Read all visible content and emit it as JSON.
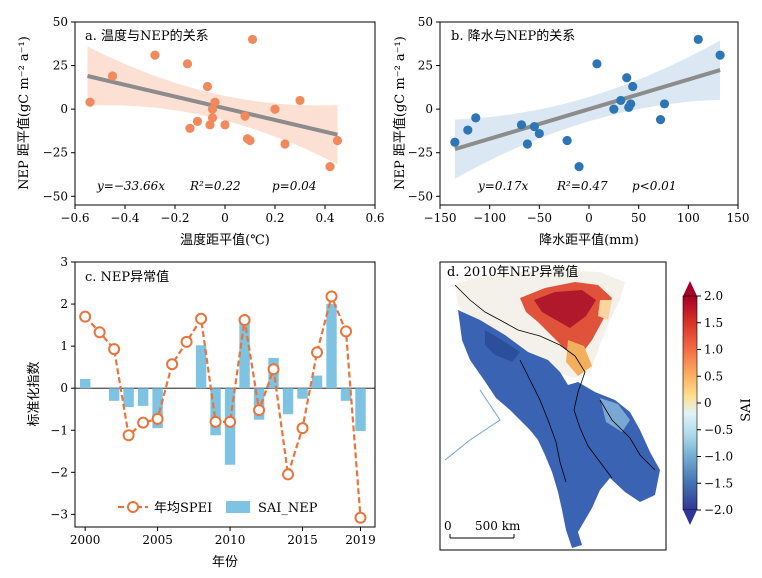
{
  "chart_data": [
    {
      "id": "a",
      "type": "scatter",
      "title": "a. 温度与NEP的关系",
      "xlabel": "温度距平值(℃)",
      "ylabel": "NEP 距平值(gC m⁻² a⁻¹)",
      "xlim": [
        -0.6,
        0.6
      ],
      "ylim": [
        -55,
        50
      ],
      "xticks": [
        -0.6,
        -0.4,
        -0.2,
        0,
        0.2,
        0.4,
        0.6
      ],
      "yticks": [
        -50,
        -25,
        0,
        25,
        50
      ],
      "xtick_labels": [
        "−0.6",
        "−0.4",
        "−0.2",
        "0",
        "0.2",
        "0.4",
        "0.6"
      ],
      "ytick_labels": [
        "−50",
        "−25",
        "0",
        "25",
        "50"
      ],
      "point_color": "#f08a5d",
      "band_color": "#fcd5c6",
      "fit": {
        "slope": -33.66,
        "intercept": 0.5,
        "x_range": [
          -0.55,
          0.45
        ]
      },
      "stats": {
        "eq": "y=−33.66x",
        "r2": "R²=0.22",
        "p": "p=0.04"
      },
      "x": [
        -0.54,
        -0.45,
        -0.28,
        -0.15,
        -0.14,
        -0.11,
        -0.07,
        -0.06,
        -0.05,
        -0.05,
        -0.04,
        0.0,
        0.08,
        0.09,
        0.1,
        0.11,
        0.2,
        0.24,
        0.3,
        0.42,
        0.45
      ],
      "y": [
        4,
        19,
        31,
        26,
        -11,
        -7,
        13,
        -9,
        -5,
        0,
        4,
        -9,
        -4,
        -17,
        -18,
        40,
        0,
        -20,
        5,
        -33,
        -18
      ]
    },
    {
      "id": "b",
      "type": "scatter",
      "title": "b. 降水与NEP的关系",
      "xlabel": "降水距平值(mm)",
      "ylabel": "NEP 距平值(gC m⁻² a⁻¹)",
      "xlim": [
        -150,
        150
      ],
      "ylim": [
        -55,
        50
      ],
      "xticks": [
        -150,
        -100,
        -50,
        0,
        50,
        100,
        150
      ],
      "yticks": [
        -50,
        -25,
        0,
        25,
        50
      ],
      "xtick_labels": [
        "−150",
        "−100",
        "−50",
        "0",
        "50",
        "100",
        "150"
      ],
      "ytick_labels": [
        "−50",
        "−25",
        "0",
        "25",
        "50"
      ],
      "point_color": "#2e75b6",
      "band_color": "#cfe0f0",
      "fit": {
        "slope": 0.17,
        "intercept": 0,
        "x_range": [
          -135,
          132
        ]
      },
      "stats": {
        "eq": "y=0.17x",
        "r2": "R²=0.47",
        "p": "p<0.01"
      },
      "x": [
        -135,
        -122,
        -114,
        -68,
        -62,
        -55,
        -50,
        -22,
        -10,
        8,
        25,
        32,
        38,
        40,
        42,
        44,
        72,
        76,
        110,
        132
      ],
      "y": [
        -19,
        -12,
        -5,
        -9,
        -20,
        -10,
        -14,
        -18,
        -33,
        26,
        0,
        5,
        18,
        1,
        3,
        13,
        -6,
        3,
        40,
        31
      ]
    },
    {
      "id": "c",
      "type": "bar+line",
      "title": "c. NEP异常值",
      "xlabel": "年份",
      "ylabel": "标准化指数",
      "xlim": [
        1999.3,
        2020
      ],
      "ylim": [
        -3.3,
        3
      ],
      "xticks": [
        2000,
        2005,
        2010,
        2015,
        2019
      ],
      "yticks": [
        -3,
        -2,
        -1,
        0,
        1,
        2,
        3
      ],
      "xtick_labels": [
        "2000",
        "2005",
        "2010",
        "2015",
        "2019"
      ],
      "ytick_labels": [
        "−3",
        "−2",
        "−1",
        "0",
        "1",
        "2",
        "3"
      ],
      "years": [
        2000,
        2001,
        2002,
        2003,
        2004,
        2005,
        2006,
        2007,
        2008,
        2009,
        2010,
        2011,
        2012,
        2013,
        2014,
        2015,
        2016,
        2017,
        2018,
        2019
      ],
      "series": [
        {
          "name": "年均SPEI",
          "kind": "line",
          "color": "#e8743b",
          "values": [
            1.7,
            1.33,
            0.93,
            -1.12,
            -0.82,
            -0.73,
            0.57,
            1.1,
            1.65,
            -0.8,
            -0.8,
            1.62,
            -0.52,
            0.45,
            -2.05,
            -0.95,
            0.85,
            2.18,
            1.35,
            -3.08
          ]
        },
        {
          "name": "SAI_NEP",
          "kind": "bar",
          "color": "#7ec4e2",
          "values": [
            0.22,
            0.0,
            -0.3,
            -0.45,
            -0.42,
            -0.95,
            0.0,
            0.0,
            1.02,
            -1.12,
            -1.82,
            1.6,
            -0.75,
            0.72,
            -0.62,
            -0.25,
            0.3,
            2.0,
            -0.3,
            -1.02
          ]
        }
      ],
      "legend_position": "bottom"
    }
  ],
  "map": {
    "title": "d. 2010年NEP异常值",
    "scale_bar": {
      "zero": "0",
      "label": "500 km"
    },
    "colorbar": {
      "label": "SAI",
      "ticks": [
        "2.0",
        "1.5",
        "1.0",
        "0.5",
        "0",
        "−0.5",
        "−1.0",
        "−1.5",
        "−2.0"
      ],
      "colors": [
        "#a50026",
        "#d73027",
        "#f46d43",
        "#fdae61",
        "#fee090",
        "#e0f3f8",
        "#abd9e9",
        "#74add1",
        "#4575b4",
        "#313695"
      ]
    }
  }
}
